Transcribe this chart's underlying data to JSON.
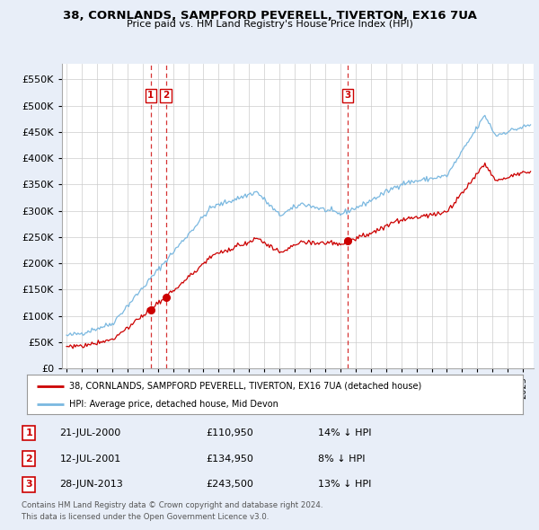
{
  "title": "38, CORNLANDS, SAMPFORD PEVERELL, TIVERTON, EX16 7UA",
  "subtitle": "Price paid vs. HM Land Registry's House Price Index (HPI)",
  "legend_line1": "38, CORNLANDS, SAMPFORD PEVERELL, TIVERTON, EX16 7UA (detached house)",
  "legend_line2": "HPI: Average price, detached house, Mid Devon",
  "footer_line1": "Contains HM Land Registry data © Crown copyright and database right 2024.",
  "footer_line2": "This data is licensed under the Open Government Licence v3.0.",
  "transactions": [
    {
      "num": 1,
      "date": "21-JUL-2000",
      "price": 110950,
      "vs_hpi": "14% ↓ HPI",
      "x_year": 2000.54
    },
    {
      "num": 2,
      "date": "12-JUL-2001",
      "price": 134950,
      "vs_hpi": "8% ↓ HPI",
      "x_year": 2001.53
    },
    {
      "num": 3,
      "date": "28-JUN-2013",
      "price": 243500,
      "vs_hpi": "13% ↓ HPI",
      "x_year": 2013.49
    }
  ],
  "hpi_color": "#7ab8e0",
  "price_color": "#cc0000",
  "vline_color": "#cc0000",
  "background_color": "#e8eef8",
  "plot_bg_color": "#ffffff",
  "ylim": [
    0,
    580000
  ],
  "yticks": [
    0,
    50000,
    100000,
    150000,
    200000,
    250000,
    300000,
    350000,
    400000,
    450000,
    500000,
    550000
  ],
  "xlim_start": 1994.7,
  "xlim_end": 2025.7
}
